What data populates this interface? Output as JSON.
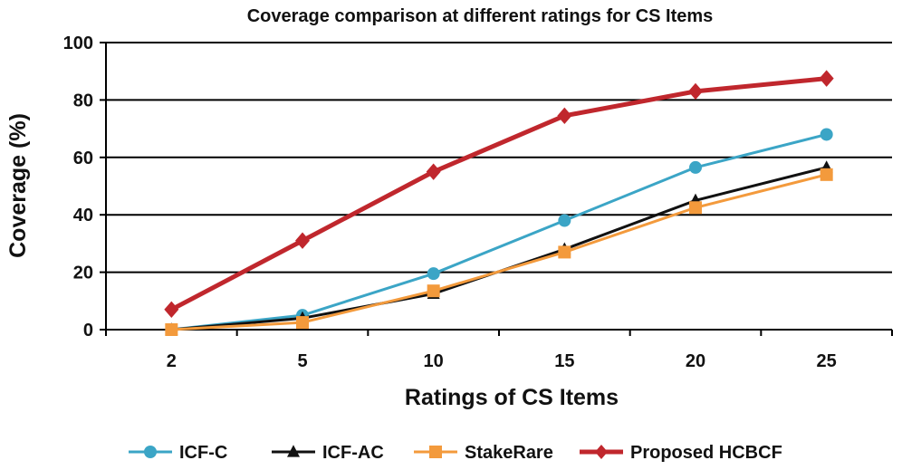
{
  "chart_data": {
    "type": "line",
    "title": "Coverage comparison at different ratings for CS Items",
    "xlabel": "Ratings of CS Items",
    "ylabel": "Coverage (%)",
    "categories": [
      "2",
      "5",
      "10",
      "15",
      "20",
      "25"
    ],
    "ylim": [
      0,
      100
    ],
    "yticks": [
      0,
      20,
      40,
      60,
      80,
      100
    ],
    "grid": true,
    "legend_position": "bottom",
    "series": [
      {
        "name": "ICF-C",
        "values": [
          0,
          5,
          19.5,
          38,
          56.5,
          68
        ],
        "color": "#3ba5c6",
        "marker": "circle"
      },
      {
        "name": "ICF-AC",
        "values": [
          0,
          4,
          12.5,
          28,
          45,
          56.5
        ],
        "color": "#111111",
        "marker": "triangle"
      },
      {
        "name": "StakeRare",
        "values": [
          0,
          2.5,
          13.5,
          27,
          42.5,
          54
        ],
        "color": "#f39a3c",
        "marker": "square"
      },
      {
        "name": "Proposed HCBCF",
        "values": [
          7,
          31,
          55,
          74.5,
          83,
          87.5
        ],
        "color": "#c0272d",
        "marker": "diamond"
      }
    ]
  }
}
